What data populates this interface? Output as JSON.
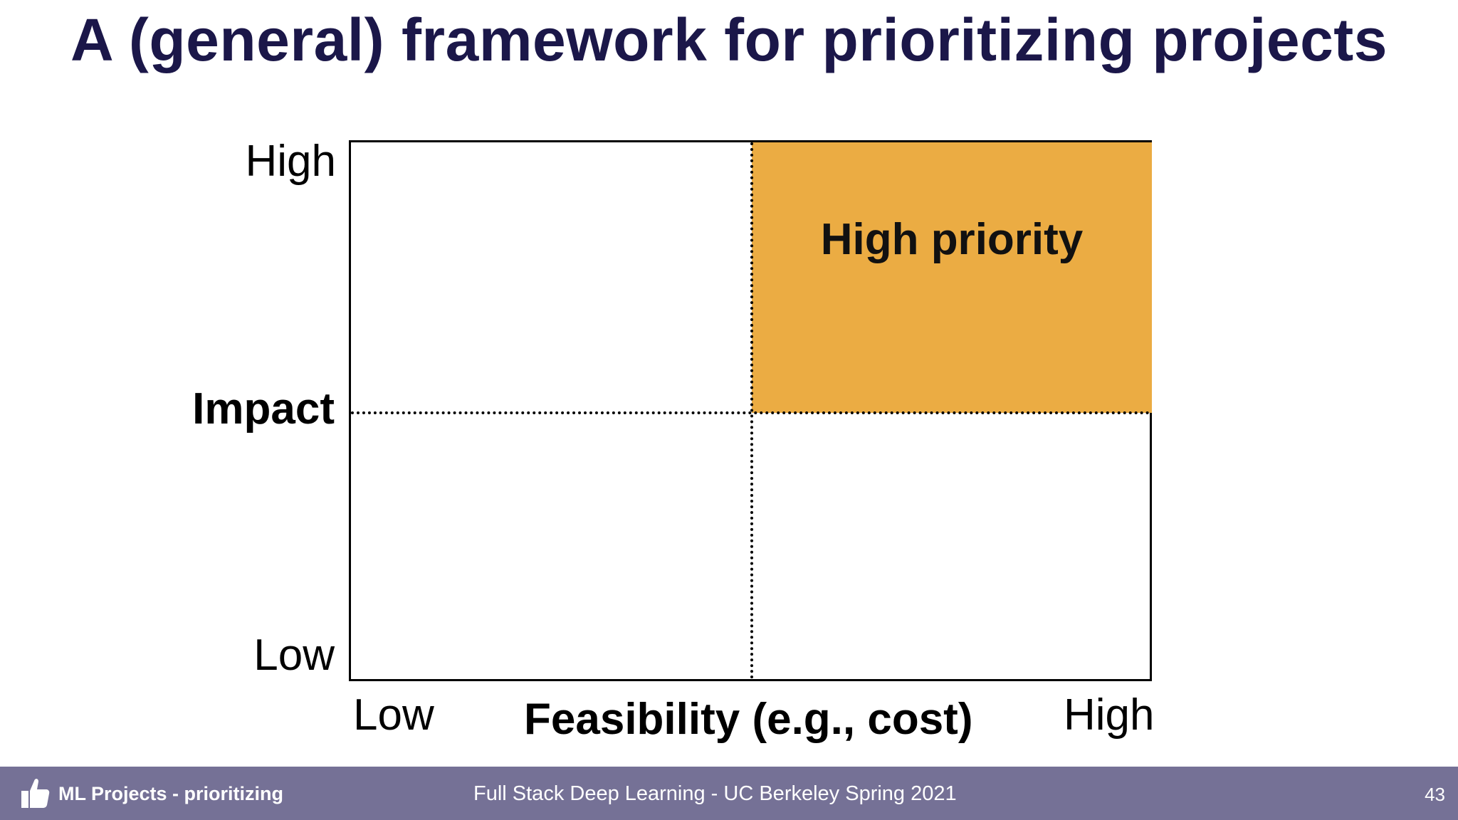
{
  "slide": {
    "title": "A (general) framework for prioritizing projects"
  },
  "matrix": {
    "quadrant_label": "High priority",
    "highlight_color": "#ebac43",
    "y_axis": {
      "title": "Impact",
      "high_label": "High",
      "low_label": "Low"
    },
    "x_axis": {
      "title": "Feasibility (e.g., cost)",
      "low_label": "Low",
      "high_label": "High"
    }
  },
  "footer": {
    "section": "ML Projects - prioritizing",
    "course": "Full Stack Deep Learning - UC Berkeley Spring 2021",
    "page_number": "43",
    "logo_icon": "thumbs-up-icon",
    "background_color": "#757196"
  }
}
